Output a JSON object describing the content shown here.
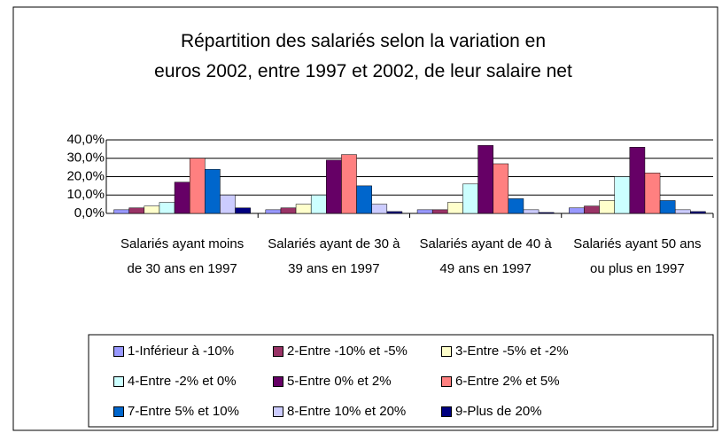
{
  "chart_data": {
    "type": "bar",
    "title": [
      "Répartition des salariés selon la variation en",
      "euros 2002, entre 1997 et 2002, de leur salaire net"
    ],
    "categories": [
      "Salariés ayant moins de 30 ans en 1997",
      "Salariés ayant de 30 à 39 ans en 1997",
      "Salariés ayant de 40 à 49 ans en 1997",
      "Salariés ayant 50 ans ou plus en 1997"
    ],
    "series": [
      {
        "name": "1-Inférieur à -10%",
        "color": "#9999ff",
        "values": [
          2,
          2,
          2,
          3
        ]
      },
      {
        "name": "2-Entre -10% et -5%",
        "color": "#993366",
        "values": [
          3,
          3,
          2,
          4
        ]
      },
      {
        "name": "3-Entre -5% et -2%",
        "color": "#ffffcc",
        "values": [
          4,
          5,
          6,
          7
        ]
      },
      {
        "name": "4-Entre -2% et 0%",
        "color": "#ccffff",
        "values": [
          6,
          10,
          16,
          20
        ]
      },
      {
        "name": "5-Entre 0% et 2%",
        "color": "#660066",
        "values": [
          17,
          29,
          37,
          36
        ]
      },
      {
        "name": "6-Entre 2% et 5%",
        "color": "#ff8080",
        "values": [
          30,
          32,
          27,
          22
        ]
      },
      {
        "name": "7-Entre 5% et 10%",
        "color": "#0066cc",
        "values": [
          24,
          15,
          8,
          7
        ]
      },
      {
        "name": "8-Entre 10% et 20%",
        "color": "#ccccff",
        "values": [
          10,
          5,
          2,
          2
        ]
      },
      {
        "name": "9-Plus de 20%",
        "color": "#000080",
        "values": [
          3,
          1,
          0.5,
          1
        ]
      }
    ],
    "ylim": [
      0,
      40
    ],
    "yticks": [
      {
        "value": 0,
        "label": "0,0%"
      },
      {
        "value": 10,
        "label": "10,0%"
      },
      {
        "value": 20,
        "label": "20,0%"
      },
      {
        "value": 30,
        "label": "30,0%"
      },
      {
        "value": 40,
        "label": "40,0%"
      }
    ],
    "grid": true,
    "legend": "bottom"
  }
}
